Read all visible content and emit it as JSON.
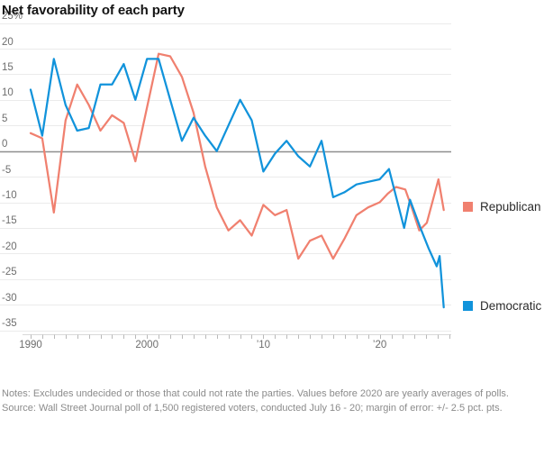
{
  "title": "Net favorability of each party",
  "notes": "Notes: Excludes undecided or those that could not rate the parties. Values before 2020 are yearly averages of polls.",
  "source": "Source: Wall Street Journal poll of 1,500 registered voters, conducted July 16 - 20; margin of error: +/- 2.5 pct. pts.",
  "legend": {
    "items": [
      {
        "label": "Republican",
        "color": "#f0806f"
      },
      {
        "label": "Democratic",
        "color": "#1193db"
      }
    ]
  },
  "chart_data": {
    "type": "line",
    "title": "Net favorability of each party",
    "unit": "percentage points (net favorability)",
    "grid": true,
    "legend_position": "right",
    "x_axis": {
      "range": [
        1990,
        2026
      ],
      "minor_ticks_every": 1,
      "label_years": [
        1990,
        2000,
        2010,
        2020
      ],
      "labels": [
        "1990",
        "2000",
        "’10",
        "’20"
      ]
    },
    "y_axis": {
      "range": [
        -35,
        25
      ],
      "top_label": "25%",
      "tick_values": [
        25,
        20,
        15,
        10,
        5,
        0,
        -5,
        -10,
        -15,
        -20,
        -25,
        -30,
        -35
      ],
      "zero_line": true
    },
    "series": [
      {
        "name": "Republican",
        "color": "#f0806f",
        "points": [
          [
            1990,
            3.5
          ],
          [
            1991,
            2.5
          ],
          [
            1992,
            -12
          ],
          [
            1993,
            6
          ],
          [
            1994,
            13
          ],
          [
            1995,
            9
          ],
          [
            1996,
            4
          ],
          [
            1997,
            7
          ],
          [
            1998,
            5.5
          ],
          [
            1999,
            -2
          ],
          [
            2000,
            8.5
          ],
          [
            2001,
            19
          ],
          [
            2002,
            18.5
          ],
          [
            2003,
            14.5
          ],
          [
            2004,
            7.5
          ],
          [
            2005,
            -3
          ],
          [
            2006,
            -11
          ],
          [
            2007,
            -15.5
          ],
          [
            2008,
            -13.5
          ],
          [
            2009,
            -16.5
          ],
          [
            2010,
            -10.5
          ],
          [
            2011,
            -12.5
          ],
          [
            2012,
            -11.5
          ],
          [
            2013,
            -21
          ],
          [
            2014,
            -17.5
          ],
          [
            2015,
            -16.5
          ],
          [
            2016,
            -21
          ],
          [
            2017,
            -17
          ],
          [
            2018,
            -12.5
          ],
          [
            2019,
            -11
          ],
          [
            2020,
            -10
          ],
          [
            2020.7,
            -8.3
          ],
          [
            2021.4,
            -7
          ],
          [
            2022.2,
            -7.5
          ],
          [
            2022.75,
            -11
          ],
          [
            2023.4,
            -15.5
          ],
          [
            2024.05,
            -14
          ],
          [
            2024.7,
            -8.5
          ],
          [
            2025.05,
            -5.5
          ],
          [
            2025.5,
            -11.5
          ]
        ]
      },
      {
        "name": "Democratic",
        "color": "#1193db",
        "points": [
          [
            1990,
            12
          ],
          [
            1991,
            3
          ],
          [
            1992,
            18
          ],
          [
            1993,
            9
          ],
          [
            1994,
            4
          ],
          [
            1995,
            4.5
          ],
          [
            1996,
            13
          ],
          [
            1997,
            13
          ],
          [
            1998,
            17
          ],
          [
            1999,
            10
          ],
          [
            2000,
            18
          ],
          [
            2001,
            18
          ],
          [
            2002,
            10
          ],
          [
            2003,
            2
          ],
          [
            2004,
            6.5
          ],
          [
            2005,
            3
          ],
          [
            2006,
            0
          ],
          [
            2007,
            5
          ],
          [
            2008,
            10
          ],
          [
            2009,
            6
          ],
          [
            2010,
            -4
          ],
          [
            2011,
            -0.5
          ],
          [
            2012,
            2
          ],
          [
            2013,
            -1
          ],
          [
            2014,
            -3
          ],
          [
            2015,
            2
          ],
          [
            2016,
            -9
          ],
          [
            2017,
            -8
          ],
          [
            2018,
            -6.5
          ],
          [
            2019,
            -6
          ],
          [
            2020,
            -5.5
          ],
          [
            2020.8,
            -3.5
          ],
          [
            2022.1,
            -15
          ],
          [
            2022.6,
            -9.5
          ],
          [
            2023.5,
            -15
          ],
          [
            2024.2,
            -19
          ],
          [
            2024.9,
            -22.5
          ],
          [
            2025.15,
            -20.5
          ],
          [
            2025.5,
            -30.5
          ]
        ]
      }
    ]
  }
}
